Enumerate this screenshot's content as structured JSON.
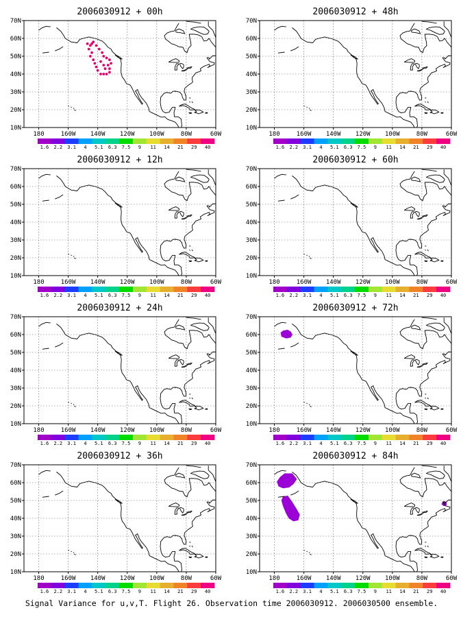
{
  "caption": "Signal Variance for u,v,T. Flight 26. Observation time 2006030912. 2006030500 ensemble.",
  "map": {
    "lon_range": [
      -190,
      -60
    ],
    "lat_range": [
      10,
      70
    ],
    "lon_ticks": [
      {
        "lon": -180,
        "label": "180"
      },
      {
        "lon": -160,
        "label": "160W"
      },
      {
        "lon": -140,
        "label": "140W"
      },
      {
        "lon": -120,
        "label": "120W"
      },
      {
        "lon": -100,
        "label": "100W"
      },
      {
        "lon": -80,
        "label": "80W"
      },
      {
        "lon": -60,
        "label": "60W"
      }
    ],
    "lat_ticks": [
      {
        "lat": 10,
        "label": "10N"
      },
      {
        "lat": 20,
        "label": "20N"
      },
      {
        "lat": 30,
        "label": "30N"
      },
      {
        "lat": 40,
        "label": "40N"
      },
      {
        "lat": 50,
        "label": "50N"
      },
      {
        "lat": 60,
        "label": "60N"
      },
      {
        "lat": 70,
        "label": "70N"
      }
    ],
    "grid": true
  },
  "colorbar": {
    "labels": [
      "1.6",
      "2.2",
      "3.1",
      "4",
      "5.1",
      "6.3",
      "7.5",
      "9",
      "11",
      "14",
      "21",
      "29",
      "40"
    ],
    "colors": [
      "#a000c8",
      "#8200dc",
      "#1e3cff",
      "#00a0ff",
      "#00c8c8",
      "#00d28c",
      "#00dc00",
      "#a0e632",
      "#e6dc32",
      "#e6af2d",
      "#f08228",
      "#fa3c3c",
      "#f00082"
    ]
  },
  "panels": [
    {
      "title": "2006030912 + 00h",
      "features": [
        {
          "type": "dots",
          "color": "#e6006e",
          "points": [
            [
              -147,
              57
            ],
            [
              -145,
              56
            ],
            [
              -146,
              54
            ],
            [
              -144,
              52
            ],
            [
              -145,
              50
            ],
            [
              -143,
              48
            ],
            [
              -142,
              46
            ],
            [
              -141,
              44
            ],
            [
              -140,
              42
            ],
            [
              -138,
              40
            ],
            [
              -136,
              40
            ],
            [
              -134,
              40
            ],
            [
              -132,
              41
            ],
            [
              -132,
              43
            ],
            [
              -133,
              45
            ],
            [
              -131,
              46
            ],
            [
              -132,
              48
            ],
            [
              -134,
              49
            ],
            [
              -136,
              50
            ],
            [
              -137,
              52
            ],
            [
              -139,
              54
            ],
            [
              -141,
              56
            ],
            [
              -143,
              58
            ],
            [
              -144,
              57
            ],
            [
              -138,
              47
            ],
            [
              -136,
              45
            ],
            [
              -135,
              43
            ]
          ]
        }
      ]
    },
    {
      "title": "2006030912 + 48h",
      "features": []
    },
    {
      "title": "2006030912 + 12h",
      "features": []
    },
    {
      "title": "2006030912 + 60h",
      "features": []
    },
    {
      "title": "2006030912 + 24h",
      "features": []
    },
    {
      "title": "2006030912 + 72h",
      "features": [
        {
          "type": "blob",
          "color": "#9a00d6",
          "points": [
            [
              -174,
              62
            ],
            [
              -171,
              62.5
            ],
            [
              -169,
              61.5
            ],
            [
              -168,
              60
            ],
            [
              -169,
              58.5
            ],
            [
              -172,
              58
            ],
            [
              -175,
              59
            ],
            [
              -175.5,
              61
            ]
          ]
        }
      ]
    },
    {
      "title": "2006030912 + 36h",
      "features": []
    },
    {
      "title": "2006030912 + 84h",
      "features": [
        {
          "type": "blob",
          "color": "#9a00d6",
          "points": [
            [
              -176,
              63
            ],
            [
              -173,
              65
            ],
            [
              -168,
              65
            ],
            [
              -165,
              62
            ],
            [
              -167,
              59.5
            ],
            [
              -170,
              57.5
            ],
            [
              -174,
              57
            ],
            [
              -177,
              58
            ],
            [
              -178,
              60.5
            ]
          ]
        },
        {
          "type": "blob",
          "color": "#9a00d6",
          "points": [
            [
              -174,
              52
            ],
            [
              -171,
              52.5
            ],
            [
              -168,
              49
            ],
            [
              -165,
              45
            ],
            [
              -163,
              42
            ],
            [
              -164,
              39
            ],
            [
              -167,
              38.5
            ],
            [
              -170,
              40
            ],
            [
              -172,
              43
            ],
            [
              -174,
              47
            ],
            [
              -175,
              50
            ]
          ]
        },
        {
          "type": "blob",
          "color": "#9a00d6",
          "points": [
            [
              -65,
              49.5
            ],
            [
              -63.5,
              49
            ],
            [
              -63.5,
              47.5
            ],
            [
              -65,
              47
            ],
            [
              -66.5,
              48
            ]
          ]
        }
      ]
    }
  ]
}
